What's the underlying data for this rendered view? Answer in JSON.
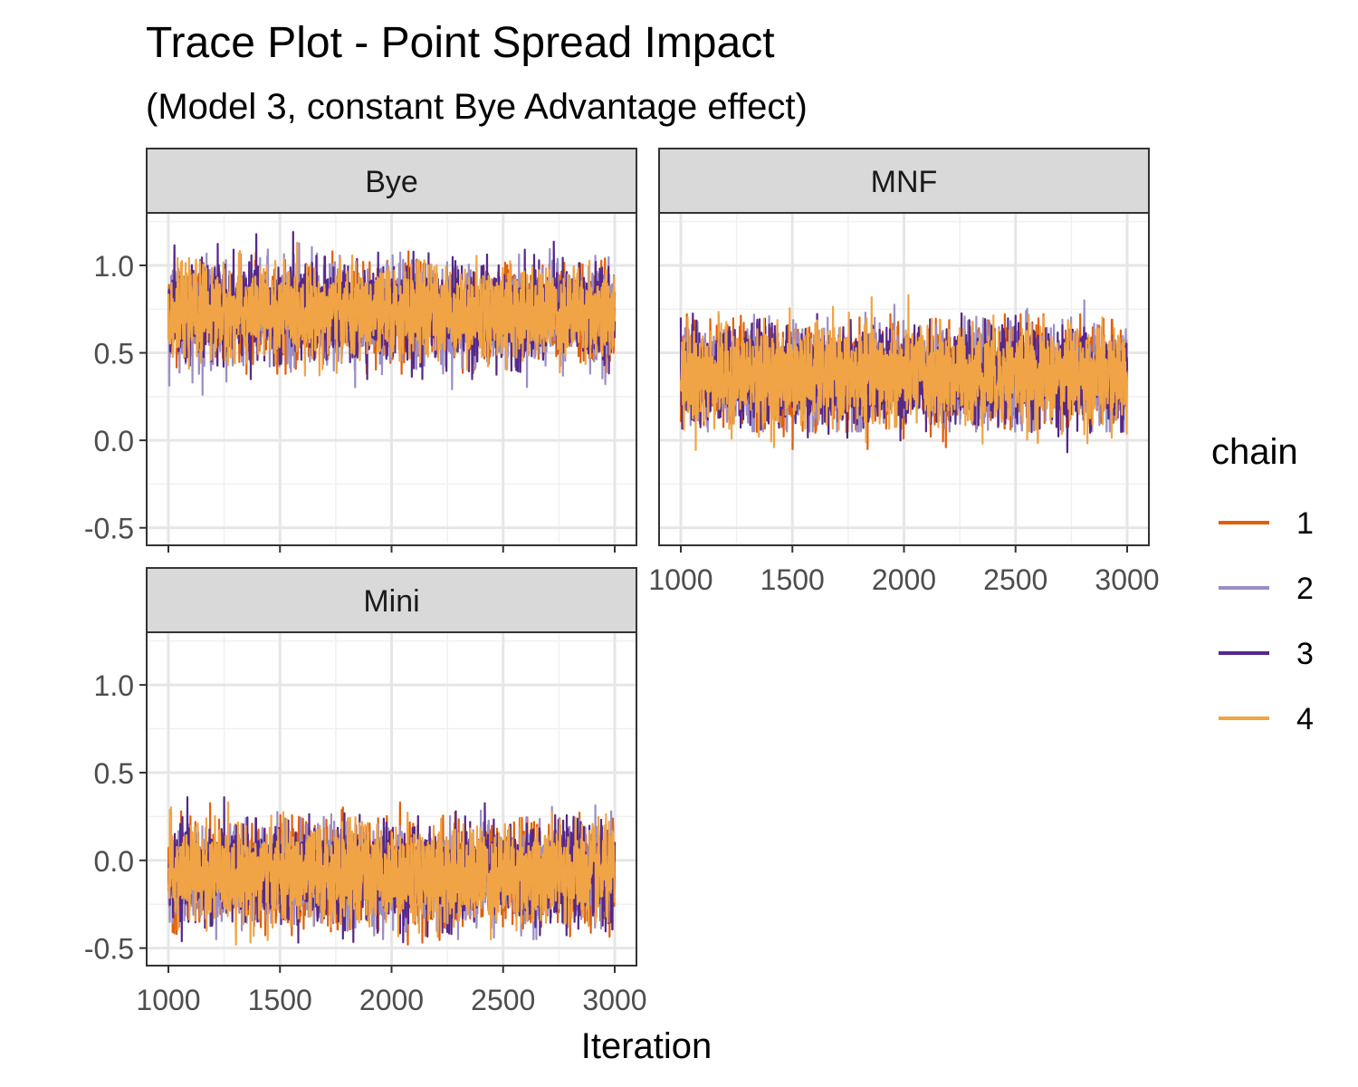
{
  "chart_data": {
    "type": "line",
    "title": "Trace Plot - Point Spread Impact",
    "subtitle": "(Model 3, constant Bye Advantage effect)",
    "xlabel": "Iteration",
    "ylabel": "",
    "xlim": [
      1000,
      3000
    ],
    "ylim": [
      -0.6,
      1.3
    ],
    "x_ticks": [
      1000,
      1500,
      2000,
      2500,
      3000
    ],
    "y_ticks": [
      -0.5,
      0.0,
      0.5,
      1.0
    ],
    "grid": true,
    "legend": {
      "title": "chain",
      "placement": "right",
      "entries": [
        "1",
        "2",
        "3",
        "4"
      ]
    },
    "series_colors": [
      "#e0600a",
      "#9c8ec4",
      "#55288a",
      "#f0a445"
    ],
    "facets": [
      {
        "name": "Bye",
        "x_range": [
          1000,
          3000
        ],
        "chains": [
          {
            "name": "1",
            "mean": 0.73,
            "sd": 0.12,
            "min": 0.38,
            "max": 1.08
          },
          {
            "name": "2",
            "mean": 0.73,
            "sd": 0.13,
            "min": 0.26,
            "max": 1.15
          },
          {
            "name": "3",
            "mean": 0.73,
            "sd": 0.13,
            "min": 0.35,
            "max": 1.2
          },
          {
            "name": "4",
            "mean": 0.73,
            "sd": 0.12,
            "min": 0.37,
            "max": 1.13
          }
        ]
      },
      {
        "name": "MNF",
        "x_range": [
          1000,
          3000
        ],
        "chains": [
          {
            "name": "1",
            "mean": 0.37,
            "sd": 0.13,
            "min": -0.05,
            "max": 0.72
          },
          {
            "name": "2",
            "mean": 0.37,
            "sd": 0.13,
            "min": 0.05,
            "max": 0.8
          },
          {
            "name": "3",
            "mean": 0.37,
            "sd": 0.13,
            "min": -0.09,
            "max": 0.75
          },
          {
            "name": "4",
            "mean": 0.37,
            "sd": 0.13,
            "min": -0.06,
            "max": 0.83
          }
        ]
      },
      {
        "name": "Mini",
        "x_range": [
          1000,
          3000
        ],
        "chains": [
          {
            "name": "1",
            "mean": -0.08,
            "sd": 0.13,
            "min": -0.5,
            "max": 0.33
          },
          {
            "name": "2",
            "mean": -0.08,
            "sd": 0.13,
            "min": -0.45,
            "max": 0.34
          },
          {
            "name": "3",
            "mean": -0.08,
            "sd": 0.13,
            "min": -0.53,
            "max": 0.36
          },
          {
            "name": "4",
            "mean": -0.08,
            "sd": 0.13,
            "min": -0.54,
            "max": 0.33
          }
        ]
      }
    ]
  }
}
